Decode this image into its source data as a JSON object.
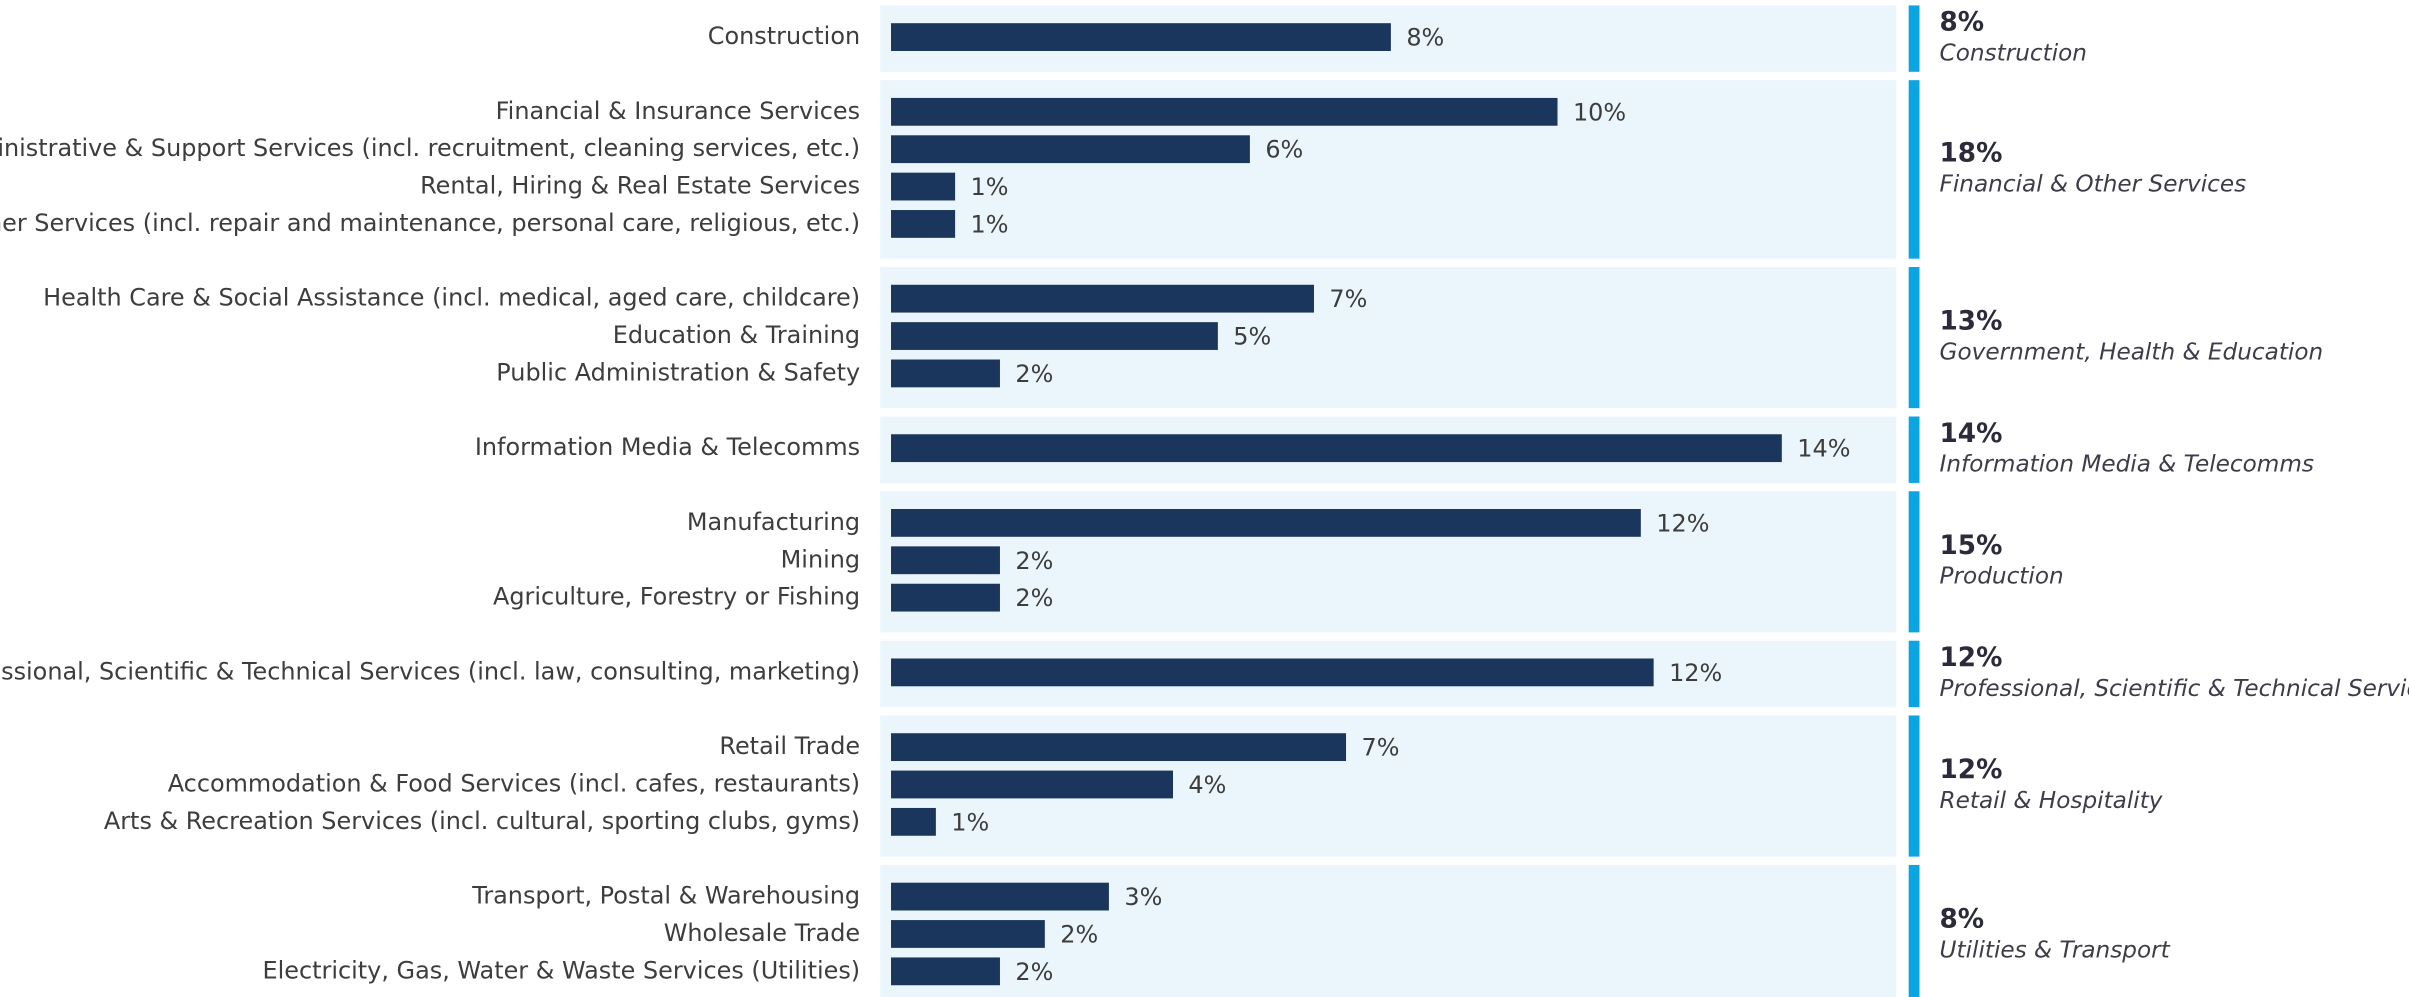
{
  "chart_data": {
    "type": "bar",
    "xlim": [
      0,
      16
    ],
    "color": "#1b365d",
    "panel_color": "#eaf5fc",
    "accent_color": "#0ba6e2",
    "groups": [
      {
        "name": "Construction",
        "total": 8,
        "total_label": "8%",
        "categories": [
          "Construction"
        ],
        "values": [
          7.8
        ],
        "value_labels": [
          "8%"
        ]
      },
      {
        "name": "Financial & Other Services",
        "total": 18,
        "total_label": "18%",
        "categories": [
          "Financial & Insurance Services",
          "Administrative & Support Services (incl. recruitment, cleaning services, etc.)",
          "Rental, Hiring & Real Estate Services",
          "Other Services (incl. repair and maintenance, personal care, religious, etc.)"
        ],
        "values": [
          10.4,
          5.6,
          1.0,
          1.0
        ],
        "value_labels": [
          "10%",
          "6%",
          "1%",
          "1%"
        ]
      },
      {
        "name": "Government, Health & Education",
        "total": 13,
        "total_label": "13%",
        "categories": [
          "Health Care & Social Assistance (incl. medical, aged care, childcare)",
          "Education & Training",
          "Public Administration & Safety"
        ],
        "values": [
          6.6,
          5.1,
          1.7
        ],
        "value_labels": [
          "7%",
          "5%",
          "2%"
        ]
      },
      {
        "name": "Information Media & Telecomms",
        "total": 14,
        "total_label": "14%",
        "categories": [
          "Information Media & Telecomms"
        ],
        "values": [
          13.9
        ],
        "value_labels": [
          "14%"
        ]
      },
      {
        "name": "Production",
        "total": 15,
        "total_label": "15%",
        "categories": [
          "Manufacturing",
          "Mining",
          "Agriculture, Forestry or Fishing"
        ],
        "values": [
          11.7,
          1.7,
          1.7
        ],
        "value_labels": [
          "12%",
          "2%",
          "2%"
        ]
      },
      {
        "name": "Professional, Scientific & Technical Services",
        "total": 12,
        "total_label": "12%",
        "categories": [
          "Professional, Scientific & Technical Services (incl. law, consulting, marketing)"
        ],
        "values": [
          11.9
        ],
        "value_labels": [
          "12%"
        ]
      },
      {
        "name": "Retail & Hospitality",
        "total": 12,
        "total_label": "12%",
        "categories": [
          "Retail Trade",
          "Accommodation & Food Services (incl. cafes, restaurants)",
          "Arts & Recreation Services (incl. cultural, sporting clubs, gyms)"
        ],
        "values": [
          7.1,
          4.4,
          0.7
        ],
        "value_labels": [
          "7%",
          "4%",
          "1%"
        ]
      },
      {
        "name": "Utilities & Transport",
        "total": 8,
        "total_label": "8%",
        "categories": [
          "Transport, Postal & Warehousing",
          "Wholesale Trade",
          "Electricity, Gas, Water & Waste Services (Utilities)"
        ],
        "values": [
          3.4,
          2.4,
          1.7
        ],
        "value_labels": [
          "3%",
          "2%",
          "2%"
        ]
      }
    ]
  }
}
